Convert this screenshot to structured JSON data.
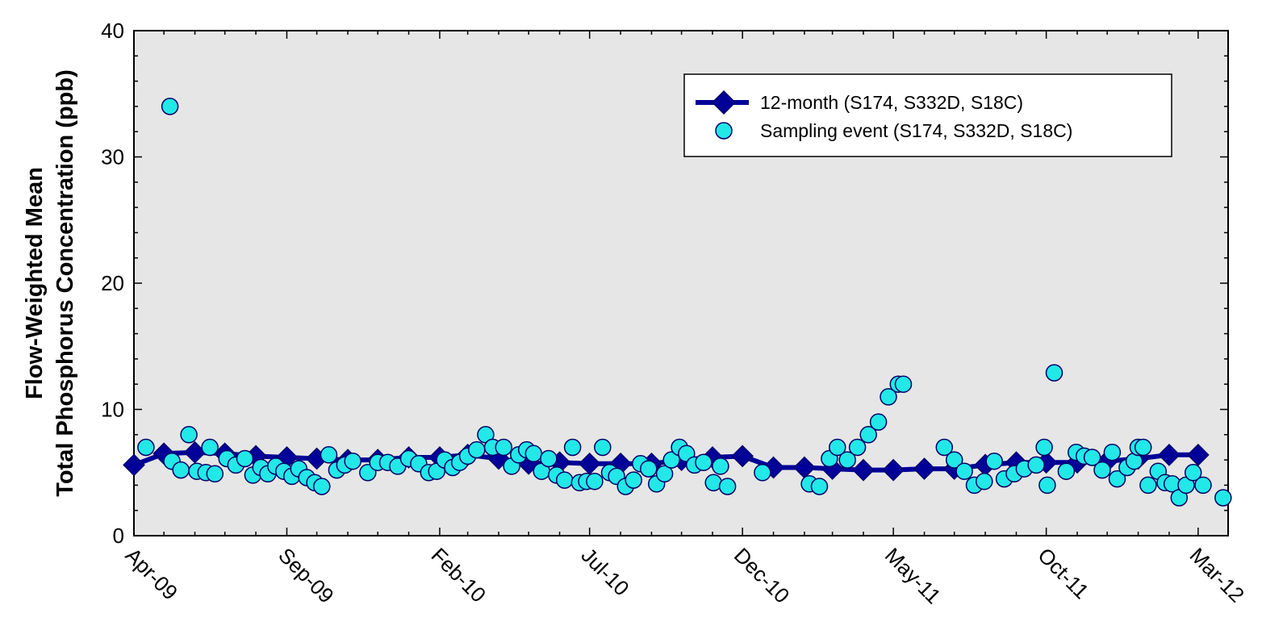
{
  "chart_data": {
    "type": "scatter",
    "title": "",
    "ylabel_line1": "Flow-Weighted Mean",
    "ylabel_line2": "Total Phosphorus Concentration (ppb)",
    "xlabel": "",
    "ylim": [
      0,
      40
    ],
    "yticks": [
      0,
      10,
      20,
      30,
      40
    ],
    "xlim": [
      "2009-04-01",
      "2012-03-31"
    ],
    "xticks": [
      {
        "date": "2009-04-01",
        "label": "Apr-09"
      },
      {
        "date": "2009-09-01",
        "label": "Sep-09"
      },
      {
        "date": "2010-02-01",
        "label": "Feb-10"
      },
      {
        "date": "2010-07-01",
        "label": "Jul-10"
      },
      {
        "date": "2010-12-01",
        "label": "Dec-10"
      },
      {
        "date": "2011-05-01",
        "label": "May-11"
      },
      {
        "date": "2011-10-01",
        "label": "Oct-11"
      },
      {
        "date": "2012-03-01",
        "label": "Mar-12"
      }
    ],
    "grid": false,
    "legend_position": "top-right",
    "colors": {
      "plot_background": "#e6e6e6",
      "line_series": "#000099",
      "scatter_fill": "#22e8e8",
      "scatter_stroke": "#000066"
    },
    "series": [
      {
        "name": "12-month (S174, S332D, S18C)",
        "kind": "line-diamond",
        "points": [
          [
            "2009-04-01",
            5.6
          ],
          [
            "2009-05-01",
            6.5
          ],
          [
            "2009-06-01",
            6.6
          ],
          [
            "2009-07-01",
            6.5
          ],
          [
            "2009-08-01",
            6.3
          ],
          [
            "2009-09-01",
            6.2
          ],
          [
            "2009-10-01",
            6.1
          ],
          [
            "2009-11-01",
            6.0
          ],
          [
            "2009-12-01",
            6.0
          ],
          [
            "2010-01-01",
            6.2
          ],
          [
            "2010-02-01",
            6.2
          ],
          [
            "2010-03-01",
            6.4
          ],
          [
            "2010-04-01",
            6.1
          ],
          [
            "2010-05-01",
            5.7
          ],
          [
            "2010-06-01",
            5.8
          ],
          [
            "2010-07-01",
            5.7
          ],
          [
            "2010-08-01",
            5.7
          ],
          [
            "2010-09-01",
            5.7
          ],
          [
            "2010-10-01",
            6.0
          ],
          [
            "2010-11-01",
            6.2
          ],
          [
            "2010-12-01",
            6.3
          ],
          [
            "2011-01-01",
            5.4
          ],
          [
            "2011-02-01",
            5.4
          ],
          [
            "2011-03-01",
            5.3
          ],
          [
            "2011-04-01",
            5.2
          ],
          [
            "2011-05-01",
            5.2
          ],
          [
            "2011-06-01",
            5.3
          ],
          [
            "2011-07-01",
            5.3
          ],
          [
            "2011-08-01",
            5.6
          ],
          [
            "2011-09-01",
            5.8
          ],
          [
            "2011-10-01",
            5.8
          ],
          [
            "2011-11-01",
            5.8
          ],
          [
            "2011-12-01",
            5.9
          ],
          [
            "2012-01-01",
            6.1
          ],
          [
            "2012-02-01",
            6.4
          ],
          [
            "2012-03-01",
            6.4
          ]
        ]
      },
      {
        "name": "Sampling event (S174, S332D, S18C)",
        "kind": "scatter-circle",
        "points": [
          [
            "2009-04-13",
            7.0
          ],
          [
            "2009-05-07",
            34.0
          ],
          [
            "2009-05-09",
            5.9
          ],
          [
            "2009-05-18",
            5.2
          ],
          [
            "2009-05-26",
            8.0
          ],
          [
            "2009-06-03",
            5.1
          ],
          [
            "2009-06-12",
            5.0
          ],
          [
            "2009-06-16",
            7.0
          ],
          [
            "2009-06-21",
            4.9
          ],
          [
            "2009-07-03",
            6.1
          ],
          [
            "2009-07-12",
            5.6
          ],
          [
            "2009-07-21",
            6.1
          ],
          [
            "2009-07-29",
            4.8
          ],
          [
            "2009-08-06",
            5.4
          ],
          [
            "2009-08-13",
            4.9
          ],
          [
            "2009-08-21",
            5.5
          ],
          [
            "2009-08-29",
            5.1
          ],
          [
            "2009-09-06",
            4.7
          ],
          [
            "2009-09-13",
            5.3
          ],
          [
            "2009-09-21",
            4.6
          ],
          [
            "2009-09-29",
            4.2
          ],
          [
            "2009-10-06",
            3.9
          ],
          [
            "2009-10-13",
            6.4
          ],
          [
            "2009-10-21",
            5.2
          ],
          [
            "2009-10-29",
            5.6
          ],
          [
            "2009-11-06",
            5.9
          ],
          [
            "2009-11-21",
            5.0
          ],
          [
            "2009-12-01",
            5.8
          ],
          [
            "2009-12-11",
            5.8
          ],
          [
            "2009-12-21",
            5.5
          ],
          [
            "2010-01-01",
            6.1
          ],
          [
            "2010-01-11",
            5.7
          ],
          [
            "2010-01-21",
            5.0
          ],
          [
            "2010-01-29",
            5.1
          ],
          [
            "2010-02-06",
            6.0
          ],
          [
            "2010-02-14",
            5.4
          ],
          [
            "2010-02-21",
            5.8
          ],
          [
            "2010-03-01",
            6.3
          ],
          [
            "2010-03-10",
            6.8
          ],
          [
            "2010-03-19",
            8.0
          ],
          [
            "2010-03-26",
            7.0
          ],
          [
            "2010-04-06",
            7.0
          ],
          [
            "2010-04-14",
            5.5
          ],
          [
            "2010-04-21",
            6.4
          ],
          [
            "2010-04-29",
            6.8
          ],
          [
            "2010-05-06",
            6.5
          ],
          [
            "2010-05-14",
            5.1
          ],
          [
            "2010-05-21",
            6.1
          ],
          [
            "2010-05-29",
            4.8
          ],
          [
            "2010-06-06",
            4.4
          ],
          [
            "2010-06-14",
            7.0
          ],
          [
            "2010-06-21",
            4.2
          ],
          [
            "2010-06-28",
            4.3
          ],
          [
            "2010-07-06",
            4.3
          ],
          [
            "2010-07-14",
            7.0
          ],
          [
            "2010-07-21",
            5.0
          ],
          [
            "2010-07-28",
            4.7
          ],
          [
            "2010-08-06",
            3.9
          ],
          [
            "2010-08-14",
            4.4
          ],
          [
            "2010-08-21",
            5.7
          ],
          [
            "2010-08-29",
            5.3
          ],
          [
            "2010-09-06",
            4.1
          ],
          [
            "2010-09-14",
            4.9
          ],
          [
            "2010-09-21",
            6.0
          ],
          [
            "2010-09-29",
            7.0
          ],
          [
            "2010-10-06",
            6.5
          ],
          [
            "2010-10-14",
            5.6
          ],
          [
            "2010-10-23",
            5.8
          ],
          [
            "2010-11-02",
            4.2
          ],
          [
            "2010-11-09",
            5.5
          ],
          [
            "2010-11-16",
            3.9
          ],
          [
            "2010-12-21",
            5.0
          ],
          [
            "2011-02-06",
            4.1
          ],
          [
            "2011-02-16",
            3.9
          ],
          [
            "2011-02-26",
            6.1
          ],
          [
            "2011-03-06",
            7.0
          ],
          [
            "2011-03-16",
            6.0
          ],
          [
            "2011-03-26",
            7.0
          ],
          [
            "2011-04-06",
            8.0
          ],
          [
            "2011-04-16",
            9.0
          ],
          [
            "2011-04-26",
            11.0
          ],
          [
            "2011-05-06",
            12.0
          ],
          [
            "2011-05-11",
            12.0
          ],
          [
            "2011-06-21",
            7.0
          ],
          [
            "2011-07-01",
            6.0
          ],
          [
            "2011-07-11",
            5.1
          ],
          [
            "2011-07-21",
            4.0
          ],
          [
            "2011-07-31",
            4.3
          ],
          [
            "2011-08-10",
            5.9
          ],
          [
            "2011-08-20",
            4.5
          ],
          [
            "2011-08-30",
            4.9
          ],
          [
            "2011-09-09",
            5.3
          ],
          [
            "2011-09-21",
            5.6
          ],
          [
            "2011-09-29",
            7.0
          ],
          [
            "2011-10-02",
            4.0
          ],
          [
            "2011-10-09",
            12.9
          ],
          [
            "2011-10-21",
            5.1
          ],
          [
            "2011-10-31",
            6.6
          ],
          [
            "2011-11-08",
            6.3
          ],
          [
            "2011-11-16",
            6.2
          ],
          [
            "2011-11-26",
            5.2
          ],
          [
            "2011-12-06",
            6.6
          ],
          [
            "2011-12-11",
            4.5
          ],
          [
            "2011-12-21",
            5.4
          ],
          [
            "2011-12-28",
            5.9
          ],
          [
            "2012-01-01",
            7.0
          ],
          [
            "2012-01-06",
            7.0
          ],
          [
            "2012-01-11",
            4.0
          ],
          [
            "2012-01-21",
            5.1
          ],
          [
            "2012-01-28",
            4.2
          ],
          [
            "2012-02-04",
            4.1
          ],
          [
            "2012-02-11",
            3.0
          ],
          [
            "2012-02-18",
            4.0
          ],
          [
            "2012-02-25",
            5.0
          ],
          [
            "2012-03-06",
            4.0
          ],
          [
            "2012-03-26",
            3.0
          ]
        ]
      }
    ]
  }
}
